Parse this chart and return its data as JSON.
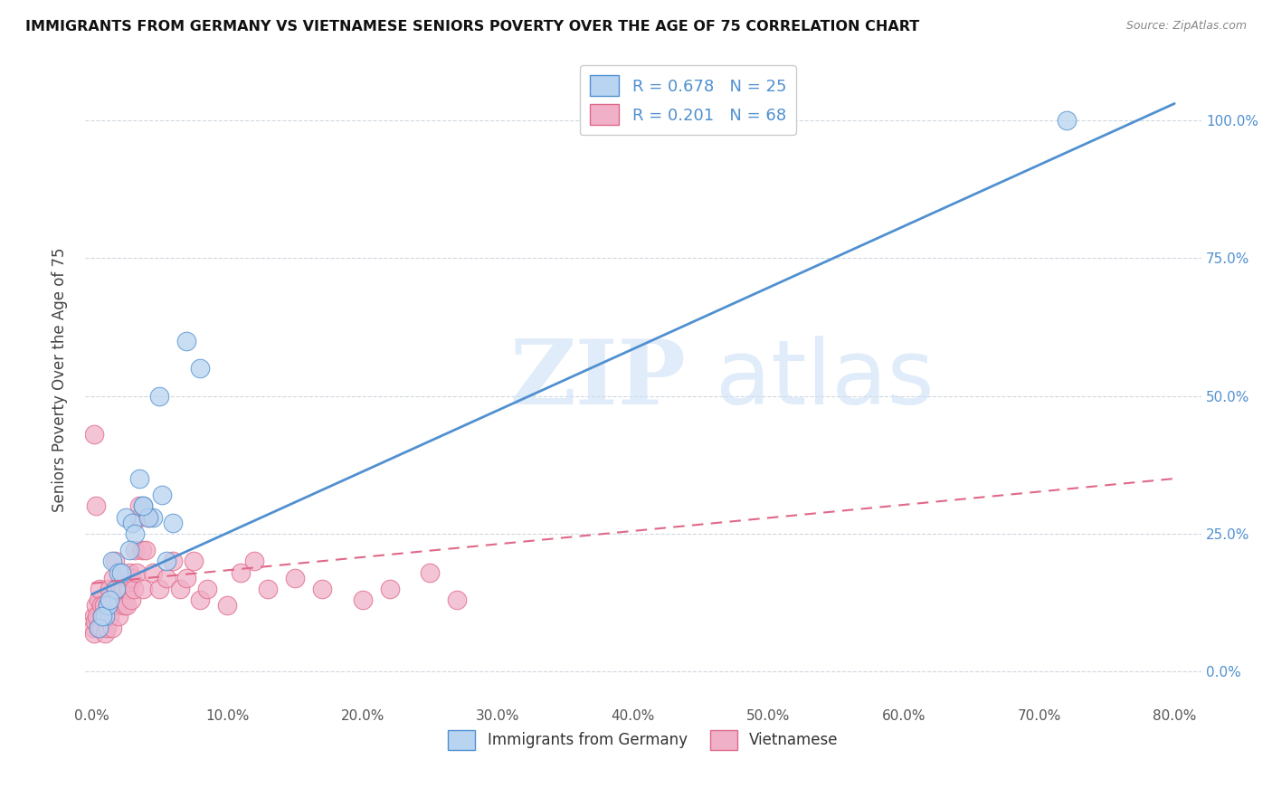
{
  "title": "IMMIGRANTS FROM GERMANY VS VIETNAMESE SENIORS POVERTY OVER THE AGE OF 75 CORRELATION CHART",
  "source": "Source: ZipAtlas.com",
  "ylabel": "Seniors Poverty Over the Age of 75",
  "xlabel_ticks": [
    "0.0%",
    "10.0%",
    "20.0%",
    "30.0%",
    "40.0%",
    "50.0%",
    "60.0%",
    "70.0%",
    "80.0%"
  ],
  "xlabel_vals": [
    0,
    10,
    20,
    30,
    40,
    50,
    60,
    70,
    80
  ],
  "ylabel_ticks": [
    "0.0%",
    "25.0%",
    "50.0%",
    "75.0%",
    "100.0%"
  ],
  "ylabel_vals": [
    0,
    25,
    50,
    75,
    100
  ],
  "xlim": [
    -0.5,
    82
  ],
  "ylim": [
    -6,
    112
  ],
  "legend_blue_label": "R = 0.678   N = 25",
  "legend_pink_label": "R = 0.201   N = 68",
  "legend_bottom_blue": "Immigrants from Germany",
  "legend_bottom_pink": "Vietnamese",
  "watermark_zip": "ZIP",
  "watermark_atlas": "atlas",
  "blue_color": "#b8d4f0",
  "blue_line_color": "#5090d0",
  "pink_color": "#f0b0c8",
  "pink_line_color": "#e06888",
  "blue_scatter_x": [
    1.5,
    2.0,
    2.5,
    3.0,
    3.5,
    3.8,
    4.5,
    5.0,
    5.5,
    6.0,
    7.0,
    8.0,
    1.0,
    1.2,
    1.8,
    2.2,
    3.2,
    4.2,
    0.5,
    0.8,
    1.3,
    2.8,
    3.8,
    5.2,
    72.0
  ],
  "blue_scatter_y": [
    20,
    18,
    28,
    27,
    35,
    30,
    28,
    50,
    20,
    27,
    60,
    55,
    10,
    12,
    15,
    18,
    25,
    28,
    8,
    10,
    13,
    22,
    30,
    32,
    100
  ],
  "pink_scatter_x": [
    0.1,
    0.15,
    0.2,
    0.25,
    0.3,
    0.4,
    0.5,
    0.5,
    0.6,
    0.7,
    0.7,
    0.8,
    0.9,
    1.0,
    1.0,
    1.1,
    1.2,
    1.3,
    1.3,
    1.4,
    1.5,
    1.5,
    1.6,
    1.7,
    1.8,
    1.9,
    2.0,
    2.0,
    2.1,
    2.2,
    2.3,
    2.4,
    2.5,
    2.6,
    2.7,
    2.8,
    2.9,
    3.0,
    3.1,
    3.2,
    3.3,
    3.5,
    3.7,
    3.8,
    4.0,
    4.2,
    4.5,
    5.0,
    5.5,
    6.0,
    6.5,
    7.0,
    7.5,
    8.0,
    8.5,
    10.0,
    11.0,
    12.0,
    13.0,
    15.0,
    17.0,
    20.0,
    22.0,
    25.0,
    27.0,
    0.2,
    0.3,
    3.5
  ],
  "pink_scatter_y": [
    8,
    10,
    7,
    9,
    12,
    10,
    13,
    8,
    15,
    12,
    8,
    10,
    12,
    10,
    7,
    8,
    12,
    15,
    10,
    13,
    12,
    8,
    17,
    20,
    15,
    12,
    10,
    13,
    15,
    18,
    15,
    12,
    17,
    12,
    15,
    18,
    13,
    17,
    15,
    22,
    18,
    28,
    22,
    15,
    22,
    28,
    18,
    15,
    17,
    20,
    15,
    17,
    20,
    13,
    15,
    12,
    18,
    20,
    15,
    17,
    15,
    13,
    15,
    18,
    13,
    43,
    30,
    30
  ],
  "blue_line_x0": 0,
  "blue_line_x1": 80,
  "blue_line_y0": 14,
  "blue_line_y1": 103,
  "pink_line_x0": 0,
  "pink_line_x1": 80,
  "pink_line_y0": 16,
  "pink_line_y1": 35
}
